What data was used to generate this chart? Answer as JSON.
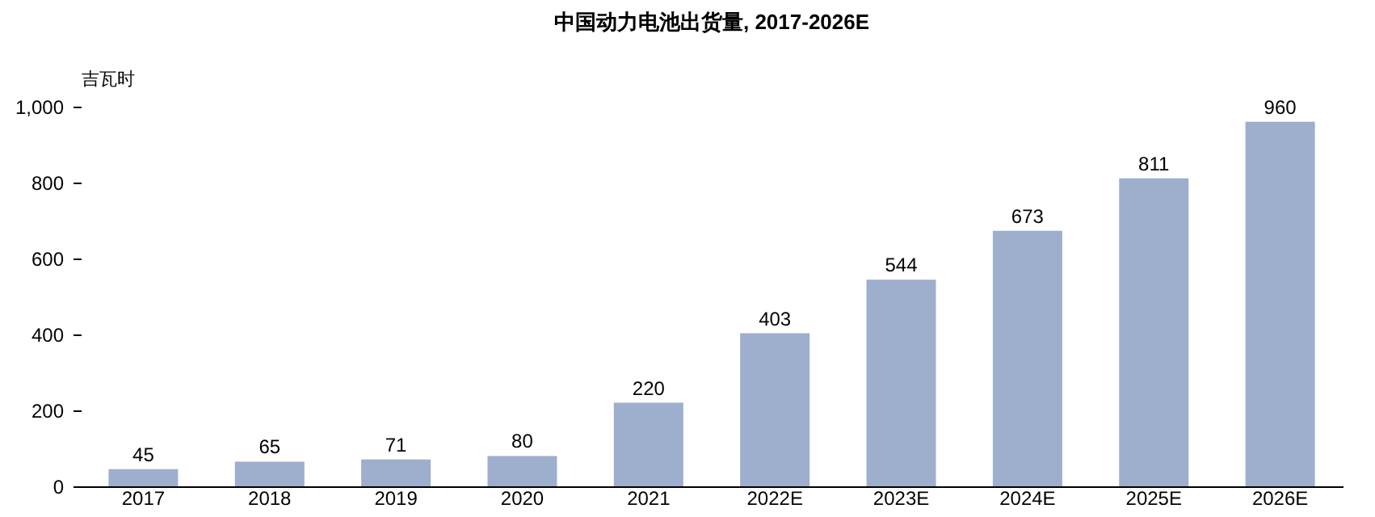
{
  "chart_data": {
    "type": "bar",
    "title": "中国动力电池出货量, 2017-2026E",
    "ylabel": "吉瓦时",
    "categories": [
      "2017",
      "2018",
      "2019",
      "2020",
      "2021",
      "2022E",
      "2023E",
      "2024E",
      "2025E",
      "2026E"
    ],
    "values": [
      45,
      65,
      71,
      80,
      220,
      403,
      544,
      673,
      811,
      960
    ],
    "color": "#9dafcc",
    "ylim": [
      0,
      1000
    ],
    "yticks": [
      0,
      200,
      400,
      600,
      {
        "value": 800,
        "label": "800"
      },
      {
        "value": 1000,
        "label": "1,000"
      }
    ],
    "data_labels": true,
    "grid": false
  }
}
